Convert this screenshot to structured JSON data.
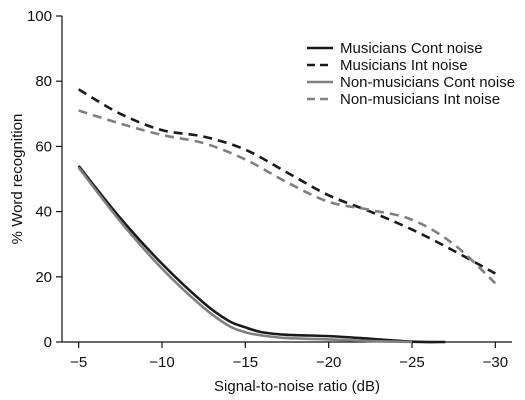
{
  "chart_data": {
    "type": "line",
    "xlabel": "Signal-to-noise ratio (dB)",
    "ylabel": "% Word recognition",
    "xlim": [
      -4,
      -31
    ],
    "ylim": [
      0,
      100
    ],
    "x_ticks": [
      -5,
      -10,
      -15,
      -20,
      -25,
      -30
    ],
    "x_tick_labels": [
      "−5",
      "−10",
      "−15",
      "−20",
      "−25",
      "−30"
    ],
    "y_ticks": [
      0,
      20,
      40,
      60,
      80,
      100
    ],
    "y_tick_labels": [
      "0",
      "20",
      "40",
      "60",
      "80",
      "100"
    ],
    "grid": false,
    "legend_position": "top-right",
    "series": [
      {
        "name": "Musicians Cont noise",
        "color": "#1a1a1a",
        "dash": "solid",
        "points": [
          [
            -5,
            54
          ],
          [
            -7.5,
            38
          ],
          [
            -10,
            24
          ],
          [
            -12.5,
            12
          ],
          [
            -14,
            6.5
          ],
          [
            -15,
            4.5
          ],
          [
            -16,
            3
          ],
          [
            -17.5,
            2.2
          ],
          [
            -20,
            1.8
          ],
          [
            -22.5,
            1
          ],
          [
            -25,
            0.1
          ],
          [
            -27,
            0
          ]
        ]
      },
      {
        "name": "Musicians Int noise",
        "color": "#1a1a1a",
        "dash": "dashed",
        "points": [
          [
            -5,
            77.5
          ],
          [
            -7.5,
            70
          ],
          [
            -10,
            65
          ],
          [
            -12.5,
            63
          ],
          [
            -15,
            59
          ],
          [
            -17.5,
            52
          ],
          [
            -20,
            45
          ],
          [
            -22.5,
            40
          ],
          [
            -25,
            34.5
          ],
          [
            -27.5,
            28
          ],
          [
            -30,
            21
          ]
        ]
      },
      {
        "name": "Non-musicians Cont noise",
        "color": "#808080",
        "dash": "solid",
        "points": [
          [
            -5,
            53.5
          ],
          [
            -7.5,
            37
          ],
          [
            -10,
            22.5
          ],
          [
            -12.5,
            10.5
          ],
          [
            -14,
            5
          ],
          [
            -15,
            3
          ],
          [
            -16,
            2
          ],
          [
            -17.5,
            1.2
          ],
          [
            -20,
            0.8
          ],
          [
            -22.5,
            0.3
          ],
          [
            -25,
            0
          ]
        ]
      },
      {
        "name": "Non-musicians Int noise",
        "color": "#808080",
        "dash": "dashed",
        "points": [
          [
            -5,
            71
          ],
          [
            -7.5,
            67
          ],
          [
            -10,
            63.5
          ],
          [
            -12.5,
            61
          ],
          [
            -15,
            56
          ],
          [
            -17.5,
            49
          ],
          [
            -20,
            43
          ],
          [
            -22.5,
            40.5
          ],
          [
            -25,
            37.5
          ],
          [
            -27.5,
            30
          ],
          [
            -30,
            18
          ]
        ]
      }
    ]
  }
}
